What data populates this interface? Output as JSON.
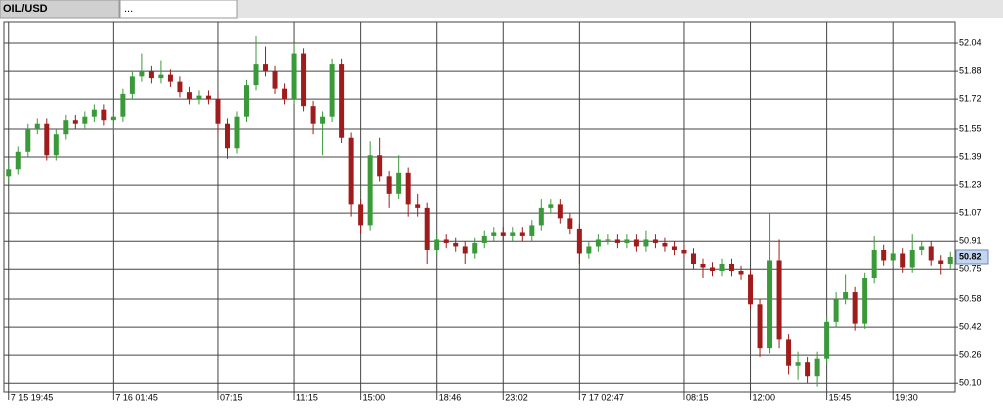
{
  "tabs": [
    "OIL/USD",
    "..."
  ],
  "chart_data": {
    "type": "candlestick",
    "categories": [
      "7 15 19:45",
      null,
      null,
      null,
      null,
      null,
      null,
      null,
      null,
      null,
      null,
      "7 16 01:45",
      null,
      null,
      null,
      null,
      null,
      null,
      null,
      null,
      null,
      null,
      "07:15",
      null,
      null,
      null,
      null,
      null,
      null,
      null,
      "11:15",
      null,
      null,
      null,
      null,
      null,
      null,
      "15:00",
      null,
      null,
      null,
      null,
      null,
      null,
      null,
      "18:46",
      null,
      null,
      null,
      null,
      null,
      null,
      "23:02",
      null,
      null,
      null,
      null,
      null,
      null,
      null,
      "7 17 02:47",
      null,
      null,
      null,
      null,
      null,
      null,
      null,
      null,
      null,
      null,
      "08:15",
      null,
      null,
      null,
      null,
      null,
      null,
      "12:00",
      null,
      null,
      null,
      null,
      null,
      null,
      null,
      "15:45",
      null,
      null,
      null,
      null,
      null,
      null,
      "19:30",
      null,
      null,
      null,
      null,
      null,
      null
    ],
    "open": [
      51.28,
      51.32,
      51.42,
      51.55,
      51.58,
      51.4,
      51.52,
      51.6,
      51.58,
      51.62,
      51.66,
      51.6,
      51.62,
      51.75,
      51.85,
      51.88,
      51.84,
      51.86,
      51.82,
      51.76,
      51.72,
      51.74,
      51.72,
      51.58,
      51.44,
      51.62,
      51.8,
      51.92,
      51.88,
      51.78,
      51.72,
      51.98,
      51.68,
      51.58,
      51.62,
      51.92,
      51.5,
      51.12,
      51.0,
      51.4,
      51.28,
      51.18,
      51.3,
      51.12,
      51.1,
      50.86,
      50.92,
      50.9,
      50.88,
      50.84,
      50.9,
      50.94,
      50.96,
      50.94,
      50.96,
      50.94,
      51.0,
      51.1,
      51.12,
      51.04,
      50.98,
      50.84,
      50.88,
      50.92,
      50.92,
      50.9,
      50.92,
      50.88,
      50.92,
      50.9,
      50.88,
      50.86,
      50.84,
      50.78,
      50.76,
      50.74,
      50.78,
      50.74,
      50.72,
      50.55,
      50.3,
      50.8,
      50.35,
      50.2,
      50.22,
      50.14,
      50.24,
      50.45,
      50.58,
      50.62,
      50.44,
      50.7,
      50.86,
      50.8,
      50.84,
      50.76,
      50.86,
      50.88,
      50.8,
      50.78
    ],
    "high": [
      51.35,
      51.45,
      51.58,
      51.61,
      51.61,
      51.55,
      51.63,
      51.63,
      51.65,
      51.69,
      51.69,
      51.65,
      51.78,
      51.88,
      51.98,
      51.91,
      51.94,
      51.89,
      51.85,
      51.79,
      51.77,
      51.77,
      51.75,
      51.61,
      51.65,
      51.83,
      52.08,
      52.02,
      51.91,
      51.81,
      52.04,
      52.01,
      51.71,
      51.65,
      51.95,
      51.95,
      51.53,
      51.15,
      51.48,
      51.5,
      51.31,
      51.4,
      51.33,
      51.18,
      51.13,
      50.95,
      50.95,
      50.93,
      50.91,
      50.93,
      50.97,
      50.99,
      50.99,
      50.99,
      50.99,
      51.03,
      51.15,
      51.15,
      51.15,
      51.07,
      51.01,
      50.91,
      50.95,
      50.95,
      50.95,
      50.95,
      50.95,
      50.97,
      50.95,
      50.93,
      50.91,
      50.89,
      50.87,
      50.81,
      50.79,
      50.81,
      50.81,
      50.77,
      50.75,
      50.58,
      51.07,
      50.92,
      50.38,
      50.28,
      50.25,
      50.28,
      50.48,
      50.62,
      50.72,
      50.65,
      50.73,
      50.94,
      50.89,
      50.87,
      50.87,
      50.95,
      50.91,
      50.91,
      50.83,
      50.85
    ],
    "low": [
      51.25,
      51.29,
      51.39,
      51.52,
      51.37,
      51.37,
      51.49,
      51.55,
      51.55,
      51.59,
      51.57,
      51.52,
      51.59,
      51.72,
      51.82,
      51.81,
      51.81,
      51.79,
      51.73,
      51.69,
      51.69,
      51.69,
      51.52,
      51.38,
      51.41,
      51.59,
      51.77,
      51.85,
      51.75,
      51.69,
      51.69,
      51.65,
      51.52,
      51.4,
      51.59,
      51.47,
      51.05,
      50.95,
      50.97,
      51.25,
      51.1,
      51.15,
      51.05,
      51.05,
      50.78,
      50.83,
      50.87,
      50.85,
      50.78,
      50.81,
      50.87,
      50.91,
      50.91,
      50.91,
      50.91,
      50.91,
      50.97,
      51.07,
      51.01,
      50.95,
      50.78,
      50.81,
      50.85,
      50.89,
      50.87,
      50.87,
      50.85,
      50.85,
      50.87,
      50.85,
      50.83,
      50.81,
      50.75,
      50.7,
      50.71,
      50.71,
      50.71,
      50.69,
      50.52,
      50.25,
      50.27,
      50.3,
      50.15,
      50.12,
      50.1,
      50.08,
      50.21,
      50.42,
      50.55,
      50.4,
      50.41,
      50.67,
      50.77,
      50.77,
      50.73,
      50.73,
      50.83,
      50.77,
      50.72,
      50.75
    ],
    "close": [
      51.32,
      51.42,
      51.55,
      51.58,
      51.4,
      51.52,
      51.6,
      51.58,
      51.62,
      51.66,
      51.6,
      51.62,
      51.75,
      51.85,
      51.88,
      51.84,
      51.86,
      51.82,
      51.76,
      51.72,
      51.74,
      51.72,
      51.58,
      51.44,
      51.62,
      51.8,
      51.92,
      51.88,
      51.78,
      51.72,
      51.98,
      51.68,
      51.58,
      51.62,
      51.92,
      51.5,
      51.12,
      51.0,
      51.4,
      51.28,
      51.18,
      51.3,
      51.12,
      51.1,
      50.86,
      50.92,
      50.9,
      50.88,
      50.84,
      50.9,
      50.94,
      50.96,
      50.94,
      50.96,
      50.94,
      51.0,
      51.1,
      51.12,
      51.04,
      50.98,
      50.84,
      50.88,
      50.92,
      50.92,
      50.9,
      50.92,
      50.88,
      50.92,
      50.9,
      50.88,
      50.86,
      50.84,
      50.78,
      50.76,
      50.74,
      50.78,
      50.74,
      50.72,
      50.55,
      50.3,
      50.8,
      50.35,
      50.2,
      50.22,
      50.14,
      50.24,
      50.45,
      50.58,
      50.62,
      50.44,
      50.7,
      50.86,
      50.8,
      50.84,
      50.76,
      50.86,
      50.88,
      50.8,
      50.78,
      50.82
    ],
    "up_color": "#3a9a3a",
    "down_color": "#a01c1c",
    "ylim": [
      50.05,
      52.16
    ],
    "yticks": [
      52.04,
      51.88,
      51.72,
      51.55,
      51.39,
      51.23,
      51.07,
      50.91,
      50.75,
      50.58,
      50.42,
      50.26,
      {
        "value": 50.1,
        "label": "50.10"
      }
    ],
    "grid": true
  }
}
